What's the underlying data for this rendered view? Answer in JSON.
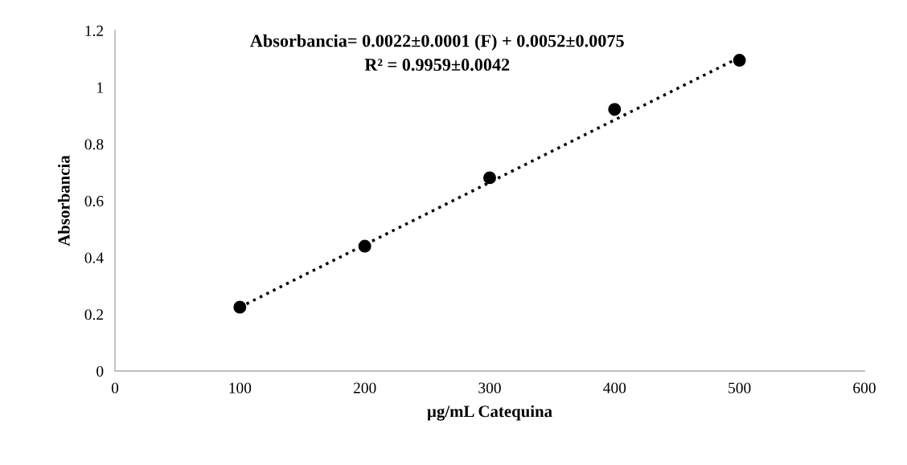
{
  "chart_data": {
    "type": "scatter",
    "xlabel": "µg/mL Catequina",
    "ylabel": "Absorbancia",
    "annotations": [
      "Absorbancia= 0.0022±0.0001 (F) + 0.0052±0.0075",
      "R² = 0.9959±0.0042"
    ],
    "x": [
      100,
      200,
      300,
      400,
      500
    ],
    "series": [
      {
        "color": "#000000",
        "marker": "circle",
        "values": [
          0.225,
          0.44,
          0.681,
          0.922,
          1.095
        ]
      },
      {
        "type": "line",
        "color": "#000000",
        "line_style": "dotted",
        "marker": "none",
        "x": [
          100,
          500
        ],
        "values": [
          0.225,
          1.105
        ]
      }
    ],
    "xlim": [
      0,
      600
    ],
    "xticks": [
      0,
      100,
      200,
      300,
      400,
      500,
      600
    ],
    "ylim": [
      0,
      1.2
    ],
    "yticks": [
      0,
      0.2,
      0.4,
      0.6,
      0.8,
      1,
      1.2
    ],
    "grid": false,
    "legend": false
  }
}
